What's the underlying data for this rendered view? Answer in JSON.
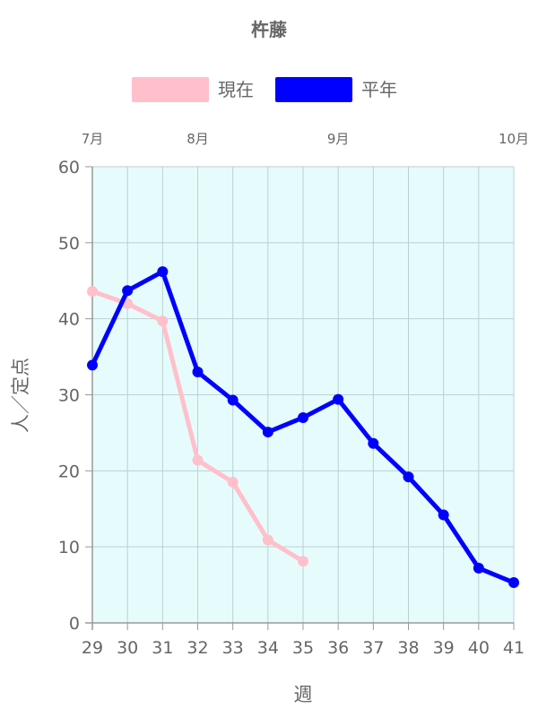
{
  "chart_data": {
    "type": "line",
    "title": "杵藤",
    "xlabel": "週",
    "ylabel": "人／定点",
    "categories": [
      "29",
      "30",
      "31",
      "32",
      "33",
      "34",
      "35",
      "36",
      "37",
      "38",
      "39",
      "40",
      "41"
    ],
    "ylim": [
      0,
      60
    ],
    "yticks": [
      0,
      10,
      20,
      30,
      40,
      50,
      60
    ],
    "month_labels": [
      {
        "label": "7月",
        "week": 29
      },
      {
        "label": "8月",
        "week": 32
      },
      {
        "label": "9月",
        "week": 36
      },
      {
        "label": "10月",
        "week": 41
      }
    ],
    "plot_background": "#e6fcfc",
    "grid": true,
    "legend_position": "top",
    "series": [
      {
        "name": "現在",
        "color": "#ffc0cb",
        "values": [
          43.6,
          42.0,
          39.7,
          21.4,
          18.5,
          10.9,
          8.1,
          null,
          null,
          null,
          null,
          null,
          null
        ]
      },
      {
        "name": "平年",
        "color": "#0000ff",
        "values": [
          33.9,
          43.7,
          46.2,
          33.0,
          29.3,
          25.1,
          27.0,
          29.4,
          23.6,
          19.2,
          14.2,
          7.2,
          5.3
        ]
      }
    ]
  }
}
